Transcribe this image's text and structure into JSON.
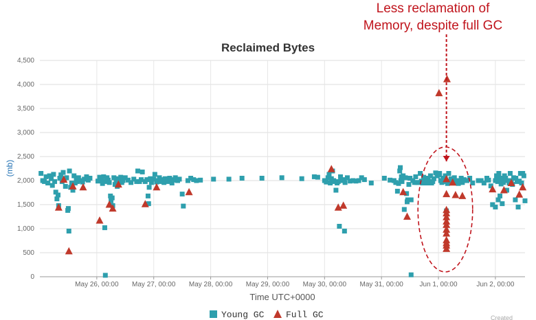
{
  "chart_data": {
    "type": "scatter",
    "title": "Reclaimed Bytes",
    "xlabel": "Time UTC+0000",
    "ylabel": "(mb)",
    "ylim": [
      0,
      4500
    ],
    "yticks": [
      "0",
      "500",
      "1,000",
      "1,500",
      "2,000",
      "2,500",
      "3,000",
      "3,500",
      "4,000",
      "4,500"
    ],
    "xlim_days": [
      25.0,
      33.52
    ],
    "xticks": [
      {
        "label": "May 26, 00:00",
        "day": 26
      },
      {
        "label": "May 27, 00:00",
        "day": 27
      },
      {
        "label": "May 28, 00:00",
        "day": 28
      },
      {
        "label": "May 29, 00:00",
        "day": 29
      },
      {
        "label": "May 30, 00:00",
        "day": 30
      },
      {
        "label": "May 31, 00:00",
        "day": 31
      },
      {
        "label": "Jun 1, 00:00",
        "day": 32
      },
      {
        "label": "Jun 2, 00:00",
        "day": 33
      }
    ],
    "legend_position": "bottom",
    "grid": true,
    "series": [
      {
        "name": "Young GC",
        "marker": "square",
        "color": "#2e9fad",
        "points": [
          [
            25.02,
            2150
          ],
          [
            25.05,
            2000
          ],
          [
            25.08,
            1980
          ],
          [
            25.11,
            2080
          ],
          [
            25.14,
            1950
          ],
          [
            25.17,
            2100
          ],
          [
            25.2,
            2040
          ],
          [
            25.22,
            1900
          ],
          [
            25.24,
            2130
          ],
          [
            25.26,
            1980
          ],
          [
            25.28,
            1760
          ],
          [
            25.3,
            1620
          ],
          [
            25.32,
            1700
          ],
          [
            25.33,
            1480
          ],
          [
            25.35,
            2050
          ],
          [
            25.37,
            2120
          ],
          [
            25.39,
            1980
          ],
          [
            25.41,
            2170
          ],
          [
            25.43,
            2020
          ],
          [
            25.45,
            1880
          ],
          [
            25.47,
            2060
          ],
          [
            25.49,
            1380
          ],
          [
            25.5,
            1420
          ],
          [
            25.51,
            950
          ],
          [
            25.52,
            2200
          ],
          [
            25.54,
            1860
          ],
          [
            25.56,
            1950
          ],
          [
            25.58,
            1800
          ],
          [
            25.6,
            2100
          ],
          [
            25.62,
            1950
          ],
          [
            25.64,
            2050
          ],
          [
            25.66,
            1980
          ],
          [
            25.68,
            2060
          ],
          [
            25.72,
            2000
          ],
          [
            25.75,
            1970
          ],
          [
            25.78,
            2030
          ],
          [
            25.82,
            2080
          ],
          [
            25.85,
            2010
          ],
          [
            25.88,
            2050
          ],
          [
            26.02,
            1990
          ],
          [
            26.05,
            2070
          ],
          [
            26.08,
            2030
          ],
          [
            26.1,
            1940
          ],
          [
            26.12,
            2080
          ],
          [
            26.14,
            1020
          ],
          [
            26.15,
            30
          ],
          [
            26.16,
            1980
          ],
          [
            26.18,
            2060
          ],
          [
            26.2,
            2010
          ],
          [
            26.22,
            1960
          ],
          [
            26.24,
            1680
          ],
          [
            26.25,
            1580
          ],
          [
            26.27,
            1640
          ],
          [
            26.28,
            1480
          ],
          [
            26.3,
            2060
          ],
          [
            26.32,
            1920
          ],
          [
            26.34,
            1980
          ],
          [
            26.36,
            1880
          ],
          [
            26.38,
            2040
          ],
          [
            26.4,
            1960
          ],
          [
            26.42,
            2070
          ],
          [
            26.44,
            1960
          ],
          [
            26.46,
            2000
          ],
          [
            26.5,
            2060
          ],
          [
            26.55,
            2010
          ],
          [
            26.6,
            1960
          ],
          [
            26.65,
            2030
          ],
          [
            26.7,
            1980
          ],
          [
            26.72,
            2200
          ],
          [
            26.75,
            1980
          ],
          [
            26.78,
            2020
          ],
          [
            26.8,
            2180
          ],
          [
            26.85,
            1980
          ],
          [
            26.88,
            2020
          ],
          [
            26.9,
            1680
          ],
          [
            26.91,
            1520
          ],
          [
            26.92,
            1860
          ],
          [
            26.94,
            2040
          ],
          [
            26.96,
            1960
          ],
          [
            27.0,
            2030
          ],
          [
            27.02,
            2130
          ],
          [
            27.05,
            1970
          ],
          [
            27.08,
            2000
          ],
          [
            27.1,
            2060
          ],
          [
            27.12,
            1980
          ],
          [
            27.15,
            2020
          ],
          [
            27.18,
            1960
          ],
          [
            27.2,
            2040
          ],
          [
            27.22,
            2000
          ],
          [
            27.25,
            1980
          ],
          [
            27.28,
            2050
          ],
          [
            27.3,
            2020
          ],
          [
            27.32,
            1950
          ],
          [
            27.35,
            2010
          ],
          [
            27.38,
            2060
          ],
          [
            27.42,
            2000
          ],
          [
            27.45,
            2030
          ],
          [
            27.5,
            1720
          ],
          [
            27.52,
            1470
          ],
          [
            27.6,
            2000
          ],
          [
            27.65,
            2050
          ],
          [
            27.7,
            2020
          ],
          [
            27.75,
            2000
          ],
          [
            27.82,
            2010
          ],
          [
            28.05,
            2030
          ],
          [
            28.32,
            2030
          ],
          [
            28.55,
            2050
          ],
          [
            28.9,
            2050
          ],
          [
            29.25,
            2060
          ],
          [
            29.6,
            2040
          ],
          [
            29.82,
            2080
          ],
          [
            29.88,
            2070
          ],
          [
            30.0,
            2000
          ],
          [
            30.03,
            1970
          ],
          [
            30.06,
            2060
          ],
          [
            30.08,
            2130
          ],
          [
            30.1,
            1950
          ],
          [
            30.12,
            2040
          ],
          [
            30.14,
            2200
          ],
          [
            30.16,
            2000
          ],
          [
            30.18,
            1980
          ],
          [
            30.2,
            1800
          ],
          [
            30.22,
            1950
          ],
          [
            30.24,
            1980
          ],
          [
            30.26,
            1050
          ],
          [
            30.28,
            2080
          ],
          [
            30.3,
            2000
          ],
          [
            30.32,
            2000
          ],
          [
            30.34,
            2020
          ],
          [
            30.35,
            950
          ],
          [
            30.36,
            1960
          ],
          [
            30.4,
            2060
          ],
          [
            30.45,
            1990
          ],
          [
            30.5,
            2000
          ],
          [
            30.55,
            1990
          ],
          [
            30.6,
            2000
          ],
          [
            30.65,
            2060
          ],
          [
            30.7,
            2020
          ],
          [
            30.82,
            1950
          ],
          [
            31.05,
            2050
          ],
          [
            31.15,
            2010
          ],
          [
            31.22,
            2000
          ],
          [
            31.25,
            1960
          ],
          [
            31.28,
            1780
          ],
          [
            31.3,
            1940
          ],
          [
            31.32,
            2200
          ],
          [
            31.33,
            2270
          ],
          [
            31.34,
            2000
          ],
          [
            31.35,
            2080
          ],
          [
            31.36,
            1980
          ],
          [
            31.38,
            2100
          ],
          [
            31.4,
            1400
          ],
          [
            31.42,
            2060
          ],
          [
            31.44,
            1730
          ],
          [
            31.45,
            1560
          ],
          [
            31.46,
            1600
          ],
          [
            31.48,
            1920
          ],
          [
            31.5,
            2050
          ],
          [
            31.52,
            1600
          ],
          [
            31.52,
            40
          ],
          [
            31.55,
            2000
          ],
          [
            31.58,
            1960
          ],
          [
            31.6,
            2080
          ],
          [
            31.62,
            1960
          ],
          [
            31.65,
            1960
          ],
          [
            31.68,
            2150
          ],
          [
            31.7,
            1990
          ],
          [
            31.72,
            1950
          ],
          [
            31.74,
            2070
          ],
          [
            31.76,
            1950
          ],
          [
            31.78,
            1980
          ],
          [
            31.8,
            2050
          ],
          [
            31.82,
            2000
          ],
          [
            31.84,
            1950
          ],
          [
            31.86,
            2100
          ],
          [
            31.88,
            1950
          ],
          [
            31.9,
            1980
          ],
          [
            31.92,
            2040
          ],
          [
            31.95,
            2160
          ],
          [
            31.98,
            2100
          ],
          [
            32.0,
            2120
          ],
          [
            32.02,
            2150
          ],
          [
            32.04,
            2000
          ],
          [
            32.06,
            1960
          ],
          [
            32.08,
            2050
          ],
          [
            32.1,
            1980
          ],
          [
            32.12,
            2100
          ],
          [
            32.14,
            1370
          ],
          [
            32.16,
            1940
          ],
          [
            32.18,
            2150
          ],
          [
            32.2,
            1980
          ],
          [
            32.22,
            2040
          ],
          [
            32.25,
            1990
          ],
          [
            32.28,
            2060
          ],
          [
            32.3,
            1950
          ],
          [
            32.32,
            2000
          ],
          [
            32.35,
            1940
          ],
          [
            32.38,
            2000
          ],
          [
            32.4,
            2050
          ],
          [
            32.42,
            1960
          ],
          [
            32.45,
            2020
          ],
          [
            32.5,
            2000
          ],
          [
            32.55,
            2050
          ],
          [
            32.6,
            1950
          ],
          [
            32.7,
            2000
          ],
          [
            32.75,
            2000
          ],
          [
            32.8,
            1950
          ],
          [
            32.85,
            2050
          ],
          [
            32.88,
            2010
          ],
          [
            32.92,
            1890
          ],
          [
            33.0,
            2000
          ],
          [
            33.02,
            2100
          ],
          [
            33.04,
            1980
          ],
          [
            33.06,
            2150
          ],
          [
            33.08,
            2050
          ],
          [
            33.1,
            1930
          ],
          [
            33.12,
            2000
          ],
          [
            33.14,
            1960
          ],
          [
            33.16,
            2100
          ],
          [
            33.18,
            2050
          ],
          [
            33.2,
            1800
          ],
          [
            33.22,
            2000
          ],
          [
            33.24,
            1950
          ],
          [
            33.26,
            2150
          ],
          [
            33.28,
            2000
          ],
          [
            33.3,
            1920
          ],
          [
            33.32,
            2060
          ],
          [
            33.35,
            1600
          ],
          [
            33.36,
            2050
          ],
          [
            33.38,
            1980
          ],
          [
            33.4,
            1450
          ],
          [
            33.42,
            1990
          ],
          [
            33.44,
            2150
          ],
          [
            33.46,
            1950
          ],
          [
            33.48,
            2150
          ],
          [
            33.5,
            2100
          ],
          [
            33.52,
            1580
          ],
          [
            32.95,
            1500
          ],
          [
            33.0,
            1450
          ],
          [
            33.05,
            1600
          ],
          [
            33.08,
            1680
          ],
          [
            33.12,
            1520
          ]
        ]
      },
      {
        "name": "Full GC",
        "marker": "triangle",
        "color": "#c0392b",
        "points": [
          [
            25.33,
            1440
          ],
          [
            25.42,
            2020
          ],
          [
            25.58,
            1880
          ],
          [
            25.51,
            530
          ],
          [
            25.76,
            1860
          ],
          [
            26.05,
            1170
          ],
          [
            26.22,
            1500
          ],
          [
            26.28,
            1420
          ],
          [
            26.38,
            1920
          ],
          [
            26.85,
            1510
          ],
          [
            27.05,
            1860
          ],
          [
            27.62,
            1760
          ],
          [
            30.12,
            2240
          ],
          [
            30.24,
            1440
          ],
          [
            30.33,
            1480
          ],
          [
            31.38,
            1760
          ],
          [
            31.45,
            1250
          ],
          [
            32.01,
            3820
          ],
          [
            32.15,
            4110
          ],
          [
            32.14,
            2030
          ],
          [
            32.14,
            1720
          ],
          [
            32.14,
            1390
          ],
          [
            32.14,
            1320
          ],
          [
            32.14,
            1240
          ],
          [
            32.14,
            1150
          ],
          [
            32.14,
            1080
          ],
          [
            32.14,
            980
          ],
          [
            32.14,
            900
          ],
          [
            32.14,
            760
          ],
          [
            32.14,
            700
          ],
          [
            32.14,
            650
          ],
          [
            32.14,
            580
          ],
          [
            32.25,
            1960
          ],
          [
            32.3,
            1700
          ],
          [
            32.42,
            1680
          ],
          [
            32.95,
            1820
          ],
          [
            33.15,
            1800
          ],
          [
            33.28,
            1950
          ],
          [
            33.42,
            1710
          ],
          [
            33.48,
            1860
          ]
        ]
      }
    ],
    "annotation": {
      "lines": [
        "Less reclamation of",
        "Memory, despite full GC"
      ],
      "color": "#c0141c",
      "target_day": 32.14,
      "target_value": 2400,
      "ellipse": {
        "day_center": 32.12,
        "value_center": 1400,
        "day_radius": 0.48,
        "value_radius": 1300
      }
    },
    "footer_text": "Created"
  }
}
